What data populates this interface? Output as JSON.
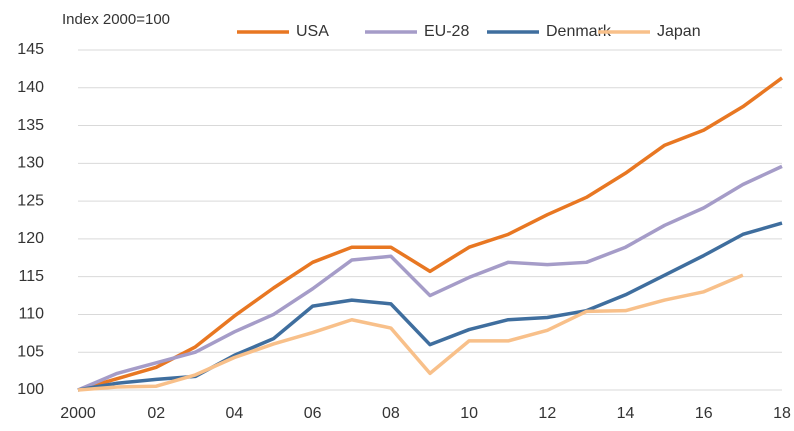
{
  "chart_data": {
    "type": "line",
    "ylabel": "Index 2000=100",
    "categories": [
      "2000",
      null,
      "02",
      null,
      "04",
      null,
      "06",
      null,
      "08",
      null,
      "10",
      null,
      "12",
      null,
      "14",
      null,
      "16",
      null,
      "18"
    ],
    "series": [
      {
        "name": "USA",
        "color": "#e87722",
        "values": [
          100,
          101.5,
          103,
          105.7,
          109.8,
          113.5,
          116.9,
          118.9,
          118.9,
          115.7,
          118.9,
          120.6,
          123.2,
          125.5,
          128.7,
          132.4,
          134.4,
          137.5,
          141.3
        ]
      },
      {
        "name": "EU-28",
        "color": "#a59cc8",
        "values": [
          100,
          102.2,
          103.6,
          105,
          107.7,
          110,
          113.4,
          117.2,
          117.7,
          112.5,
          114.9,
          116.9,
          116.6,
          116.9,
          118.9,
          121.8,
          124.1,
          127.2,
          129.6
        ]
      },
      {
        "name": "Denmark",
        "color": "#3f6e9e",
        "values": [
          100,
          100.9,
          101.4,
          101.8,
          104.6,
          106.8,
          111.1,
          111.9,
          111.4,
          106,
          108,
          109.3,
          109.6,
          110.5,
          112.6,
          115.2,
          117.8,
          120.6,
          122.1
        ]
      },
      {
        "name": "Japan",
        "color": "#f8c08a",
        "values": [
          100,
          100.4,
          100.5,
          102,
          104.3,
          106.1,
          107.6,
          109.3,
          108.2,
          102.2,
          106.5,
          106.5,
          107.9,
          110.4,
          110.5,
          111.9,
          113,
          115.2,
          null
        ]
      }
    ],
    "ylim": [
      100,
      145
    ],
    "yticks": [
      100,
      105,
      110,
      115,
      120,
      125,
      130,
      135,
      140,
      145
    ],
    "grid": true,
    "legend": "top"
  }
}
